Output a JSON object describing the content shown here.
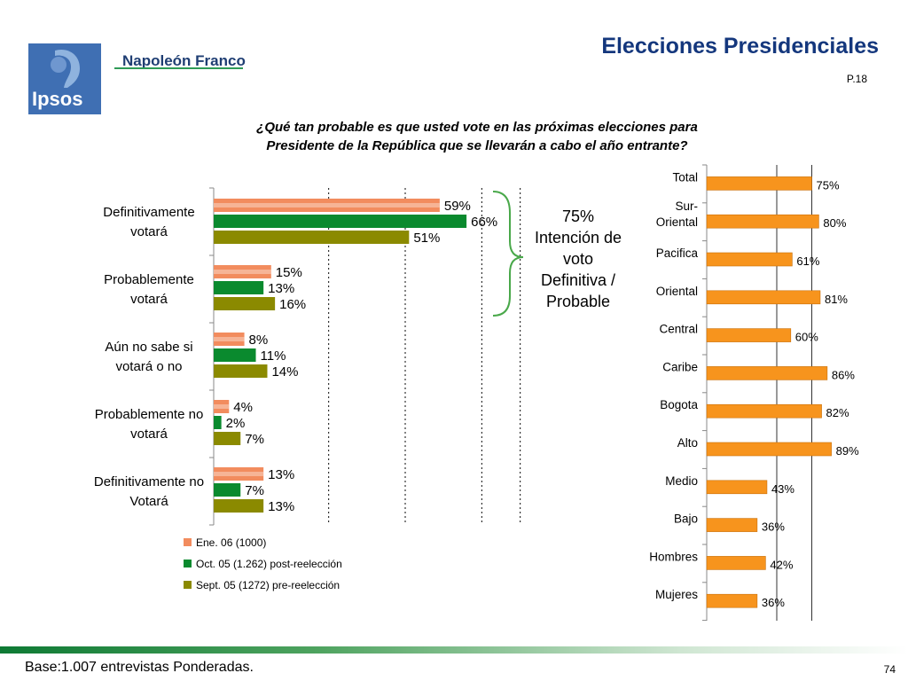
{
  "header": {
    "brand": "Napoleón Franco",
    "logo_text": "Ipsos",
    "title": "Elecciones Presidenciales",
    "page_code": "P.18"
  },
  "question": "¿Qué tan probable es que usted vote en las próximas elecciones para Presidente de la República que se llevarán a cabo el año entrante?",
  "intent_note": [
    "75%",
    "Intención de",
    "voto",
    "Definitiva /",
    "Probable"
  ],
  "footer": {
    "note": "Base:1.007 entrevistas Ponderadas.",
    "page_number": "74"
  },
  "colors": {
    "title": "#14377d",
    "series_jan": "#f28c5e",
    "series_oct": "#0a8a2e",
    "series_sep": "#8b8a00",
    "region_bar": "#f7941d",
    "bracket": "#49a84a"
  },
  "chart_data": [
    {
      "type": "bar",
      "orientation": "horizontal",
      "categories": [
        [
          "Definitivamente",
          "votará"
        ],
        [
          "Probablemente",
          "votará"
        ],
        [
          "Aún no sabe si",
          "votará o no"
        ],
        [
          "Probablemente no",
          "votará"
        ],
        [
          "Definitivamente no",
          "Votará"
        ]
      ],
      "series": [
        {
          "name": "Ene. 06 (1000)",
          "values": [
            59,
            15,
            8,
            4,
            13
          ],
          "labels": [
            "59%",
            "15%",
            "8%",
            "4%",
            "13%"
          ]
        },
        {
          "name": "Oct. 05 (1.262) post-reelección",
          "values": [
            66,
            13,
            11,
            2,
            7
          ],
          "labels": [
            "66%",
            "13%",
            "11%",
            "2%",
            "7%"
          ]
        },
        {
          "name": "Sept. 05 (1272) pre-reelección",
          "values": [
            51,
            16,
            14,
            7,
            13
          ],
          "labels": [
            "51%",
            "16%",
            "14%",
            "7%",
            "13%"
          ]
        }
      ],
      "xlim": [
        0,
        100
      ],
      "grid": "dotted vertical",
      "legend": "bottom"
    },
    {
      "type": "bar",
      "orientation": "horizontal",
      "categories": [
        "Total",
        "Sur-Oriental",
        "Pacifica",
        "Oriental",
        "Central",
        "Caribe",
        "Bogota",
        "Alto",
        "Medio",
        "Bajo",
        "Hombres",
        "Mujeres"
      ],
      "category_lines": [
        [
          "Total"
        ],
        [
          "Sur-",
          "Oriental"
        ],
        [
          "Pacifica"
        ],
        [
          "Oriental"
        ],
        [
          "Central"
        ],
        [
          "Caribe"
        ],
        [
          "Bogota"
        ],
        [
          "Alto"
        ],
        [
          "Medio"
        ],
        [
          "Bajo"
        ],
        [
          "Hombres"
        ],
        [
          "Mujeres"
        ]
      ],
      "values": [
        75,
        80,
        61,
        81,
        60,
        86,
        82,
        89,
        43,
        36,
        42,
        36
      ],
      "labels": [
        "75%",
        "80%",
        "61%",
        "81%",
        "60%",
        "86%",
        "82%",
        "89%",
        "43%",
        "36%",
        "42%",
        "36%"
      ],
      "xlim": [
        0,
        100
      ],
      "grid": "vertical"
    }
  ]
}
